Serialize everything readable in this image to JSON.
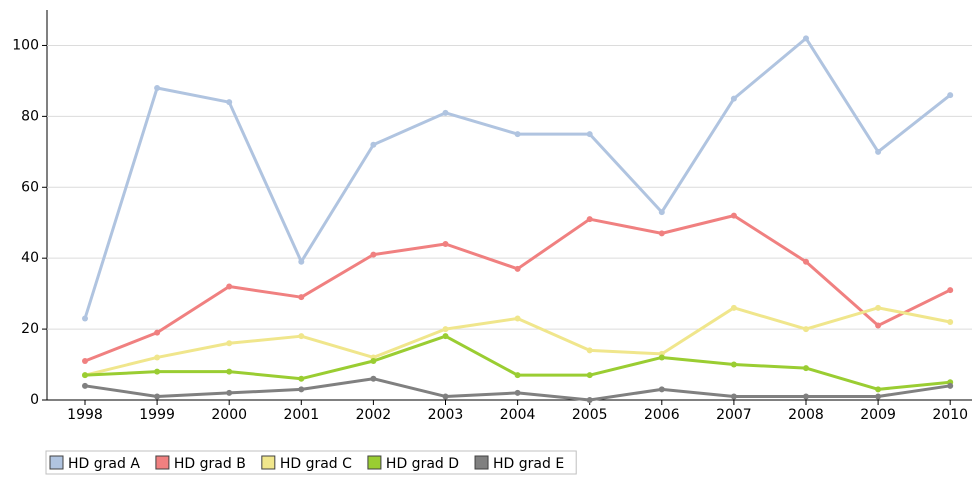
{
  "chart_data": {
    "type": "line",
    "categories": [
      "1998",
      "1999",
      "2000",
      "2001",
      "2002",
      "2003",
      "2004",
      "2005",
      "2006",
      "2007",
      "2008",
      "2009",
      "2010"
    ],
    "series": [
      {
        "name": "HD grad A",
        "color": "#b0c4e0",
        "values": [
          23,
          88,
          84,
          39,
          72,
          81,
          75,
          75,
          53,
          85,
          102,
          70,
          86
        ]
      },
      {
        "name": "HD grad B",
        "color": "#f08080",
        "values": [
          11,
          19,
          32,
          29,
          41,
          44,
          37,
          51,
          47,
          52,
          39,
          21,
          31
        ]
      },
      {
        "name": "HD grad C",
        "color": "#f0e68c",
        "values": [
          7,
          12,
          16,
          18,
          12,
          20,
          23,
          14,
          13,
          26,
          20,
          26,
          22
        ]
      },
      {
        "name": "HD grad D",
        "color": "#9acd32",
        "values": [
          7,
          8,
          8,
          6,
          11,
          18,
          7,
          7,
          12,
          10,
          9,
          3,
          5
        ]
      },
      {
        "name": "HD grad E",
        "color": "#808080",
        "values": [
          4,
          1,
          2,
          3,
          6,
          1,
          2,
          0,
          3,
          1,
          1,
          1,
          4
        ]
      }
    ],
    "ylim": [
      0,
      110
    ],
    "yticks": [
      0,
      20,
      40,
      60,
      80,
      100
    ],
    "grid": true
  }
}
